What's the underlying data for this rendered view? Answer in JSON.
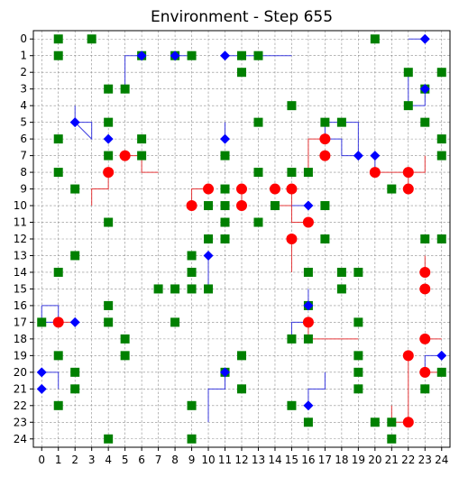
{
  "chart_data": {
    "type": "scatter",
    "title": "Environment - Step 655",
    "xlabel": "",
    "ylabel": "",
    "xlim": [
      -0.5,
      24.5
    ],
    "ylim": [
      24.5,
      -0.5
    ],
    "y_inverted": true,
    "grid": true,
    "x_ticks": [
      "0",
      "1",
      "2",
      "3",
      "4",
      "5",
      "6",
      "7",
      "8",
      "9",
      "10",
      "11",
      "12",
      "13",
      "14",
      "15",
      "16",
      "17",
      "18",
      "19",
      "20",
      "21",
      "22",
      "23",
      "24"
    ],
    "y_ticks": [
      "0",
      "1",
      "2",
      "3",
      "4",
      "5",
      "6",
      "7",
      "8",
      "9",
      "10",
      "11",
      "12",
      "13",
      "14",
      "15",
      "16",
      "17",
      "18",
      "19",
      "20",
      "21",
      "22",
      "23",
      "24"
    ],
    "colors": {
      "obstacle": "#008000",
      "red_agent": "#ff0000",
      "blue_agent": "#0000ff",
      "red_trail": "#e31a1c",
      "blue_trail": "#1f1fdc",
      "grid": "#8c8c8c"
    },
    "series": [
      {
        "marker": "square",
        "color": "#008000",
        "points": [
          [
            1,
            0
          ],
          [
            3,
            0
          ],
          [
            20,
            0
          ],
          [
            1,
            1
          ],
          [
            6,
            1
          ],
          [
            8,
            1
          ],
          [
            9,
            1
          ],
          [
            12,
            1
          ],
          [
            13,
            1
          ],
          [
            12,
            2
          ],
          [
            22,
            2
          ],
          [
            24,
            2
          ],
          [
            4,
            3
          ],
          [
            5,
            3
          ],
          [
            23,
            3
          ],
          [
            15,
            4
          ],
          [
            22,
            4
          ],
          [
            4,
            5
          ],
          [
            13,
            5
          ],
          [
            17,
            5
          ],
          [
            18,
            5
          ],
          [
            23,
            5
          ],
          [
            1,
            6
          ],
          [
            6,
            6
          ],
          [
            24,
            6
          ],
          [
            4,
            7
          ],
          [
            6,
            7
          ],
          [
            11,
            7
          ],
          [
            24,
            7
          ],
          [
            1,
            8
          ],
          [
            13,
            8
          ],
          [
            15,
            8
          ],
          [
            16,
            8
          ],
          [
            2,
            9
          ],
          [
            11,
            9
          ],
          [
            21,
            9
          ],
          [
            10,
            10
          ],
          [
            11,
            10
          ],
          [
            14,
            10
          ],
          [
            17,
            10
          ],
          [
            4,
            11
          ],
          [
            11,
            11
          ],
          [
            13,
            11
          ],
          [
            10,
            12
          ],
          [
            11,
            12
          ],
          [
            17,
            12
          ],
          [
            23,
            12
          ],
          [
            24,
            12
          ],
          [
            2,
            13
          ],
          [
            9,
            13
          ],
          [
            1,
            14
          ],
          [
            9,
            14
          ],
          [
            16,
            14
          ],
          [
            18,
            14
          ],
          [
            19,
            14
          ],
          [
            7,
            15
          ],
          [
            8,
            15
          ],
          [
            9,
            15
          ],
          [
            10,
            15
          ],
          [
            18,
            15
          ],
          [
            4,
            16
          ],
          [
            16,
            16
          ],
          [
            0,
            17
          ],
          [
            4,
            17
          ],
          [
            8,
            17
          ],
          [
            19,
            17
          ],
          [
            5,
            18
          ],
          [
            15,
            18
          ],
          [
            16,
            18
          ],
          [
            1,
            19
          ],
          [
            5,
            19
          ],
          [
            12,
            19
          ],
          [
            19,
            19
          ],
          [
            2,
            20
          ],
          [
            11,
            20
          ],
          [
            19,
            20
          ],
          [
            24,
            20
          ],
          [
            2,
            21
          ],
          [
            12,
            21
          ],
          [
            19,
            21
          ],
          [
            23,
            21
          ],
          [
            1,
            22
          ],
          [
            9,
            22
          ],
          [
            15,
            22
          ],
          [
            16,
            23
          ],
          [
            20,
            23
          ],
          [
            21,
            23
          ],
          [
            4,
            24
          ],
          [
            9,
            24
          ],
          [
            21,
            24
          ]
        ]
      },
      {
        "marker": "circle",
        "color": "#ff0000",
        "points": [
          [
            17,
            6
          ],
          [
            5,
            7
          ],
          [
            17,
            7
          ],
          [
            4,
            8
          ],
          [
            20,
            8
          ],
          [
            22,
            8
          ],
          [
            10,
            9
          ],
          [
            12,
            9
          ],
          [
            14,
            9
          ],
          [
            15,
            9
          ],
          [
            22,
            9
          ],
          [
            9,
            10
          ],
          [
            12,
            10
          ],
          [
            16,
            11
          ],
          [
            15,
            12
          ],
          [
            23,
            14
          ],
          [
            23,
            15
          ],
          [
            1,
            17
          ],
          [
            16,
            17
          ],
          [
            23,
            18
          ],
          [
            22,
            19
          ],
          [
            23,
            20
          ],
          [
            22,
            23
          ]
        ]
      },
      {
        "marker": "diamond",
        "color": "#0000ff",
        "points": [
          [
            23,
            0
          ],
          [
            6,
            1
          ],
          [
            8,
            1
          ],
          [
            11,
            1
          ],
          [
            23,
            3
          ],
          [
            2,
            5
          ],
          [
            4,
            6
          ],
          [
            11,
            6
          ],
          [
            19,
            7
          ],
          [
            20,
            7
          ],
          [
            16,
            10
          ],
          [
            10,
            13
          ],
          [
            16,
            16
          ],
          [
            2,
            17
          ],
          [
            24,
            19
          ],
          [
            0,
            20
          ],
          [
            11,
            20
          ],
          [
            0,
            21
          ],
          [
            16,
            22
          ]
        ]
      }
    ],
    "trails": {
      "red": [
        [
          [
            4,
            8
          ],
          [
            4,
            9
          ],
          [
            3,
            9
          ],
          [
            3,
            10
          ]
        ],
        [
          [
            5,
            7
          ],
          [
            6,
            7
          ],
          [
            6,
            8
          ],
          [
            7,
            8
          ]
        ],
        [
          [
            17,
            6
          ],
          [
            16,
            6
          ],
          [
            16,
            8
          ]
        ],
        [
          [
            20,
            8
          ],
          [
            23,
            8
          ],
          [
            23,
            7
          ]
        ],
        [
          [
            22,
            9
          ],
          [
            22,
            8
          ]
        ],
        [
          [
            10,
            9
          ],
          [
            9,
            9
          ],
          [
            9,
            10
          ]
        ],
        [
          [
            12,
            10
          ],
          [
            12,
            9
          ]
        ],
        [
          [
            15,
            9
          ],
          [
            15,
            10
          ],
          [
            14,
            10
          ]
        ],
        [
          [
            16,
            11
          ],
          [
            15,
            11
          ],
          [
            15,
            10
          ]
        ],
        [
          [
            15,
            12
          ],
          [
            15,
            14
          ]
        ],
        [
          [
            23,
            14
          ],
          [
            23,
            13
          ]
        ],
        [
          [
            1,
            17
          ],
          [
            2,
            17
          ]
        ],
        [
          [
            16,
            17
          ],
          [
            16,
            18
          ],
          [
            19,
            18
          ]
        ],
        [
          [
            23,
            18
          ],
          [
            24,
            18
          ]
        ],
        [
          [
            22,
            19
          ],
          [
            22,
            23
          ]
        ],
        [
          [
            23,
            20
          ],
          [
            24,
            20
          ]
        ],
        [
          [
            22,
            23
          ],
          [
            21,
            23
          ],
          [
            21,
            22
          ]
        ]
      ],
      "blue": [
        [
          [
            5,
            3
          ],
          [
            5,
            1
          ],
          [
            6,
            1
          ]
        ],
        [
          [
            8,
            1
          ],
          [
            9,
            1
          ]
        ],
        [
          [
            11,
            1
          ],
          [
            15,
            1
          ]
        ],
        [
          [
            23,
            0
          ],
          [
            22,
            0
          ]
        ],
        [
          [
            23,
            3
          ],
          [
            23,
            4
          ],
          [
            22,
            4
          ],
          [
            22,
            2
          ]
        ],
        [
          [
            2,
            5
          ],
          [
            3,
            5
          ],
          [
            3,
            6
          ],
          [
            2,
            5
          ],
          [
            2,
            4
          ]
        ],
        [
          [
            11,
            6
          ],
          [
            11,
            5
          ]
        ],
        [
          [
            19,
            7
          ],
          [
            18,
            7
          ],
          [
            18,
            6
          ],
          [
            17,
            6
          ],
          [
            17,
            5
          ],
          [
            19,
            5
          ],
          [
            19,
            7
          ]
        ],
        [
          [
            20,
            7
          ],
          [
            20,
            8
          ]
        ],
        [
          [
            16,
            10
          ],
          [
            15,
            10
          ]
        ],
        [
          [
            10,
            13
          ],
          [
            10,
            15
          ]
        ],
        [
          [
            16,
            16
          ],
          [
            16,
            15
          ]
        ],
        [
          [
            0,
            16
          ],
          [
            1,
            16
          ],
          [
            1,
            17
          ],
          [
            0,
            17
          ],
          [
            0,
            16
          ]
        ],
        [
          [
            15,
            18
          ],
          [
            15,
            17
          ],
          [
            16,
            17
          ]
        ],
        [
          [
            24,
            19
          ],
          [
            23,
            19
          ],
          [
            23,
            20
          ]
        ],
        [
          [
            0,
            20
          ],
          [
            1,
            20
          ],
          [
            1,
            21
          ]
        ],
        [
          [
            11,
            20
          ],
          [
            11,
            21
          ],
          [
            10,
            21
          ],
          [
            10,
            23
          ]
        ],
        [
          [
            16,
            22
          ],
          [
            16,
            21
          ],
          [
            17,
            21
          ],
          [
            17,
            20
          ]
        ]
      ]
    }
  }
}
